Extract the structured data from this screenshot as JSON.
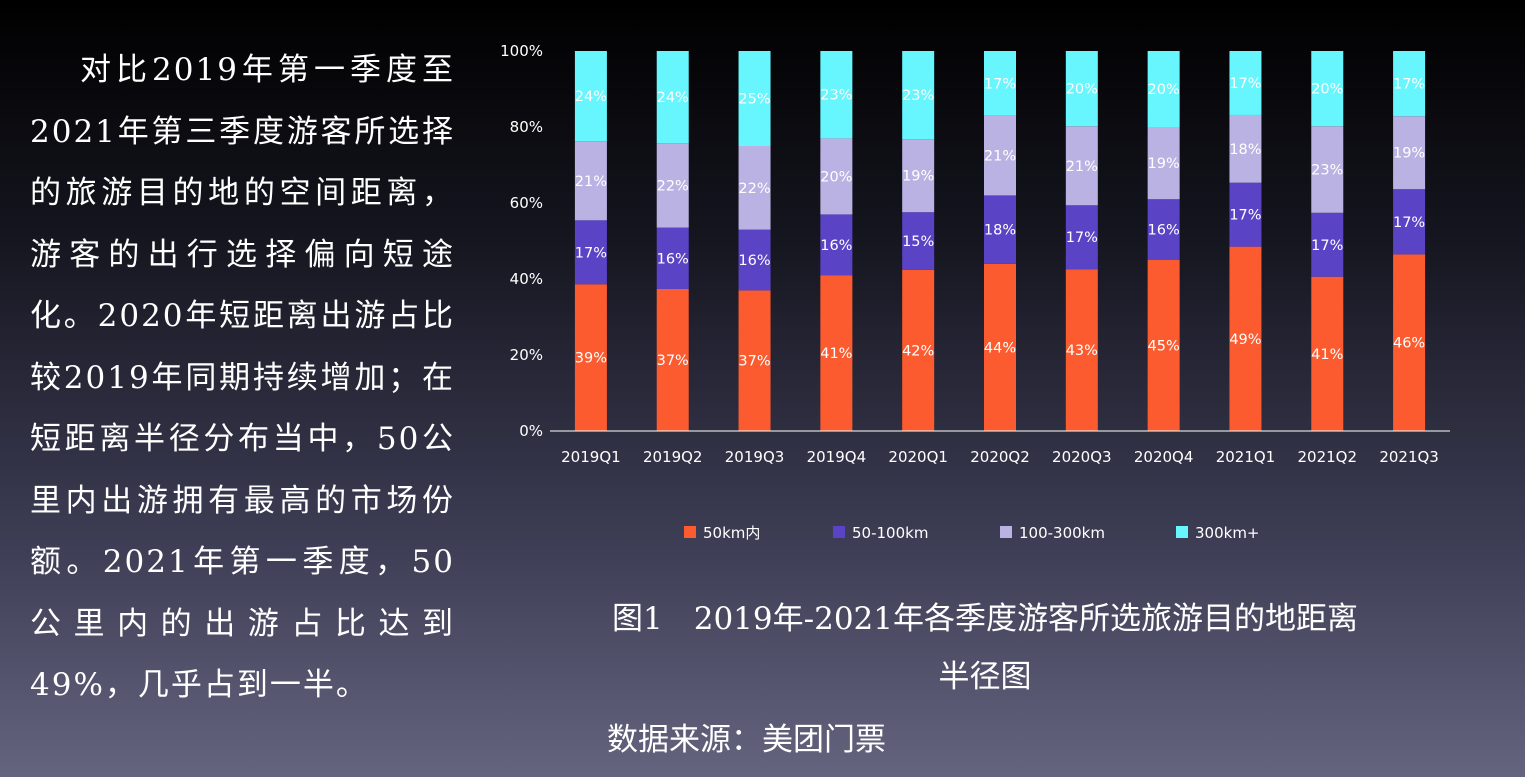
{
  "body_text": "对比2019年第一季度至2021年第三季度游客所选择的旅游目的地的空间距离，游客的出行选择偏向短途化。2020年短距离出游占比较2019年同期持续增加；在短距离半径分布当中，50公里内出游拥有最高的市场份额。2021年第一季度，50公里内的出游占比达到49%，几乎占到一半。",
  "caption": {
    "line1": "图1　2019年-2021年各季度游客所选旅游目的地距离",
    "line2": "半径图"
  },
  "source": "数据来源：美团门票",
  "chart_data": {
    "type": "bar",
    "stacked": true,
    "percent_stacked": true,
    "categories": [
      "2019Q1",
      "2019Q2",
      "2019Q3",
      "2019Q4",
      "2020Q1",
      "2020Q2",
      "2020Q3",
      "2020Q4",
      "2021Q1",
      "2021Q2",
      "2021Q3"
    ],
    "series": [
      {
        "name": "50km内",
        "color": "#fb5b2e",
        "values": [
          39,
          37,
          37,
          41,
          42,
          44,
          43,
          45,
          49,
          41,
          46
        ]
      },
      {
        "name": "50-100km",
        "color": "#5b43c6",
        "values": [
          17,
          16,
          16,
          16,
          15,
          18,
          17,
          16,
          17,
          17,
          17
        ]
      },
      {
        "name": "100-300km",
        "color": "#bab2e2",
        "values": [
          21,
          22,
          22,
          20,
          19,
          21,
          21,
          19,
          18,
          23,
          19
        ]
      },
      {
        "name": "300km+",
        "color": "#67f6fd",
        "values": [
          24,
          24,
          25,
          23,
          23,
          17,
          20,
          20,
          17,
          20,
          17
        ]
      }
    ],
    "y_ticks": [
      "0%",
      "20%",
      "40%",
      "60%",
      "80%",
      "100%"
    ],
    "ylim": [
      0,
      100
    ],
    "legend_position": "bottom",
    "grid": false
  }
}
